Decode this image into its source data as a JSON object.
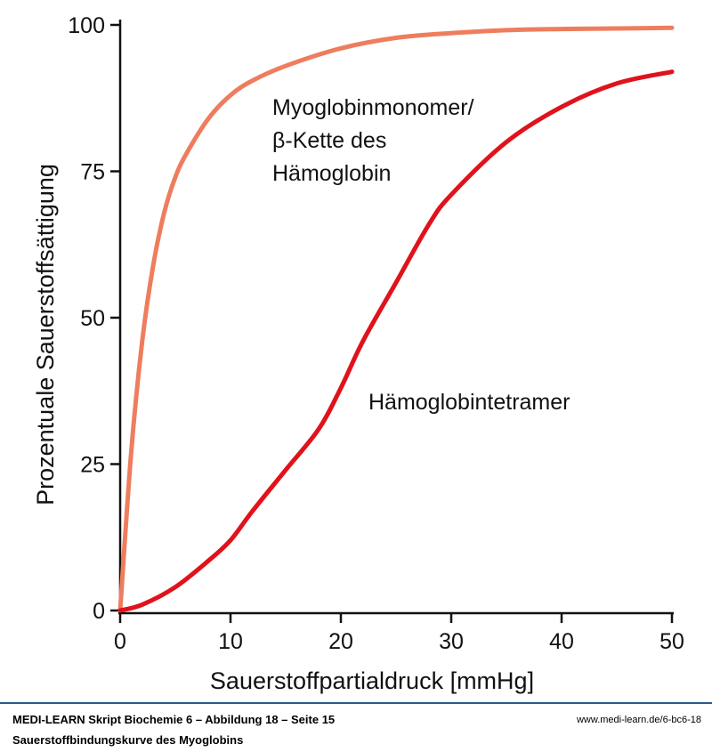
{
  "chart_data": {
    "type": "line",
    "xlabel": "Sauerstoffpartialdruck [mmHg]",
    "ylabel": "Prozentuale Sauerstoffsättigung",
    "xlim": [
      0,
      50
    ],
    "ylim": [
      0,
      100
    ],
    "x_ticks": [
      "0",
      "10",
      "20",
      "30",
      "40",
      "50"
    ],
    "y_ticks": [
      "0",
      "25",
      "50",
      "75",
      "100"
    ],
    "grid": false,
    "series": [
      {
        "name": "Myoglobinmonomer/ β-Kette des Hämoglobin",
        "label_lines": [
          "Myoglobinmonomer/",
          "β-Kette des",
          "Hämoglobin"
        ],
        "color": "#EE7D5E",
        "x": [
          0,
          1,
          2,
          3,
          4,
          5,
          6,
          8,
          10,
          12,
          15,
          20,
          25,
          30,
          35,
          40,
          45,
          50
        ],
        "y": [
          0,
          27,
          46,
          59,
          68,
          74,
          78,
          84,
          88,
          90.5,
          93,
          96,
          97.8,
          98.6,
          99.1,
          99.3,
          99.4,
          99.5
        ]
      },
      {
        "name": "Hämoglobintetramer",
        "label_lines": [
          "Hämoglobintetramer"
        ],
        "color": "#E0121B",
        "x": [
          0,
          2,
          5,
          8,
          10,
          12,
          15,
          18,
          20,
          22,
          25,
          28,
          30,
          35,
          40,
          45,
          50
        ],
        "y": [
          0,
          1,
          4,
          8.5,
          12,
          17,
          24,
          31,
          38,
          46,
          56,
          66,
          71,
          80,
          86,
          90,
          92
        ]
      }
    ]
  },
  "footer": {
    "title": "MEDI-LEARN Skript Biochemie 6 – Abbildung 18 – Seite 15",
    "subtitle": "Sauerstoffbindungskurve des Myoglobins",
    "url": "www.medi-learn.de/6-bc6-18"
  }
}
